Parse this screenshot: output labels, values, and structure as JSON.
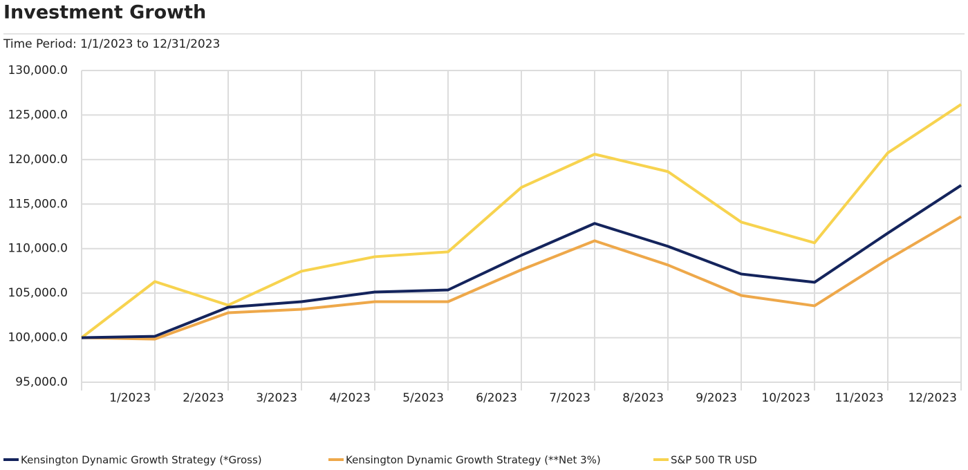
{
  "chart_data": {
    "type": "line",
    "title": "Investment Growth",
    "subtitle": "Time Period: 1/1/2023 to 12/31/2023",
    "categories": [
      null,
      "1/2023",
      "2/2023",
      "3/2023",
      "4/2023",
      "5/2023",
      "6/2023",
      "7/2023",
      "8/2023",
      "9/2023",
      "10/2023",
      "11/2023",
      "12/2023"
    ],
    "series": [
      {
        "name": "Kensington Dynamic Growth Strategy (*Gross)",
        "color": "#14245c",
        "values": [
          100000,
          100155,
          103420,
          104040,
          105130,
          105360,
          109250,
          112830,
          110260,
          107150,
          106220,
          111740,
          117100
        ]
      },
      {
        "name": "Kensington Dynamic Growth Strategy (**Net 3%)",
        "color": "#eea84a",
        "values": [
          100000,
          99845,
          102800,
          103190,
          104040,
          104040,
          107620,
          110880,
          108160,
          104740,
          103580,
          108780,
          113600
        ]
      },
      {
        "name": "S&P 500 TR USD",
        "color": "#f7d34f",
        "values": [
          100000,
          106300,
          103650,
          107460,
          109090,
          109640,
          116870,
          120600,
          118650,
          112980,
          110650,
          120750,
          126190
        ]
      }
    ],
    "ylim": [
      95000,
      130000
    ],
    "yticks": [
      {
        "value": 95000,
        "label": "95,000.0"
      },
      {
        "value": 100000,
        "label": "100,000.0"
      },
      {
        "value": 105000,
        "label": "105,000.0"
      },
      {
        "value": 110000,
        "label": "110,000.0"
      },
      {
        "value": 115000,
        "label": "115,000.0"
      },
      {
        "value": 120000,
        "label": "120,000.0"
      },
      {
        "value": 125000,
        "label": "125,000.0"
      },
      {
        "value": 130000,
        "label": "130,000.0"
      }
    ],
    "grid": true,
    "legend": "bottom"
  }
}
